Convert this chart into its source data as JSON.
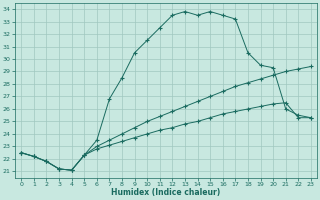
{
  "xlabel": "Humidex (Indice chaleur)",
  "ylabel": "",
  "xlim": [
    -0.5,
    23.5
  ],
  "ylim": [
    20.5,
    34.5
  ],
  "xticks": [
    0,
    1,
    2,
    3,
    4,
    5,
    6,
    7,
    8,
    9,
    10,
    11,
    12,
    13,
    14,
    15,
    16,
    17,
    18,
    19,
    20,
    21,
    22,
    23
  ],
  "yticks": [
    21,
    22,
    23,
    24,
    25,
    26,
    27,
    28,
    29,
    30,
    31,
    32,
    33,
    34
  ],
  "bg_color": "#c8e8e0",
  "grid_color": "#a0c8c0",
  "line_color": "#1a6b60",
  "line1_x": [
    0,
    1,
    2,
    3,
    4,
    5,
    6,
    7,
    8,
    9,
    10,
    11,
    12,
    13,
    14,
    15,
    16,
    17,
    18,
    19,
    20,
    21,
    22,
    23
  ],
  "line1_y": [
    22.5,
    22.2,
    21.8,
    21.2,
    21.1,
    22.3,
    23.5,
    26.8,
    28.5,
    30.5,
    31.5,
    32.5,
    33.5,
    33.8,
    33.5,
    33.8,
    33.5,
    33.2,
    30.5,
    29.5,
    29.3,
    26.0,
    25.5,
    25.3
  ],
  "line2_x": [
    0,
    1,
    2,
    3,
    4,
    5,
    6,
    7,
    8,
    9,
    10,
    11,
    12,
    13,
    14,
    15,
    16,
    17,
    18,
    19,
    20,
    21,
    22,
    23
  ],
  "line2_y": [
    22.5,
    22.2,
    21.8,
    21.2,
    21.1,
    22.3,
    23.0,
    23.5,
    24.0,
    24.5,
    25.0,
    25.4,
    25.8,
    26.2,
    26.6,
    27.0,
    27.4,
    27.8,
    28.1,
    28.4,
    28.7,
    29.0,
    29.2,
    29.4
  ],
  "line3_x": [
    0,
    1,
    2,
    3,
    4,
    5,
    6,
    7,
    8,
    9,
    10,
    11,
    12,
    13,
    14,
    15,
    16,
    17,
    18,
    19,
    20,
    21,
    22,
    23
  ],
  "line3_y": [
    22.5,
    22.2,
    21.8,
    21.2,
    21.1,
    22.3,
    22.8,
    23.1,
    23.4,
    23.7,
    24.0,
    24.3,
    24.5,
    24.8,
    25.0,
    25.3,
    25.6,
    25.8,
    26.0,
    26.2,
    26.4,
    26.5,
    25.3,
    25.3
  ]
}
